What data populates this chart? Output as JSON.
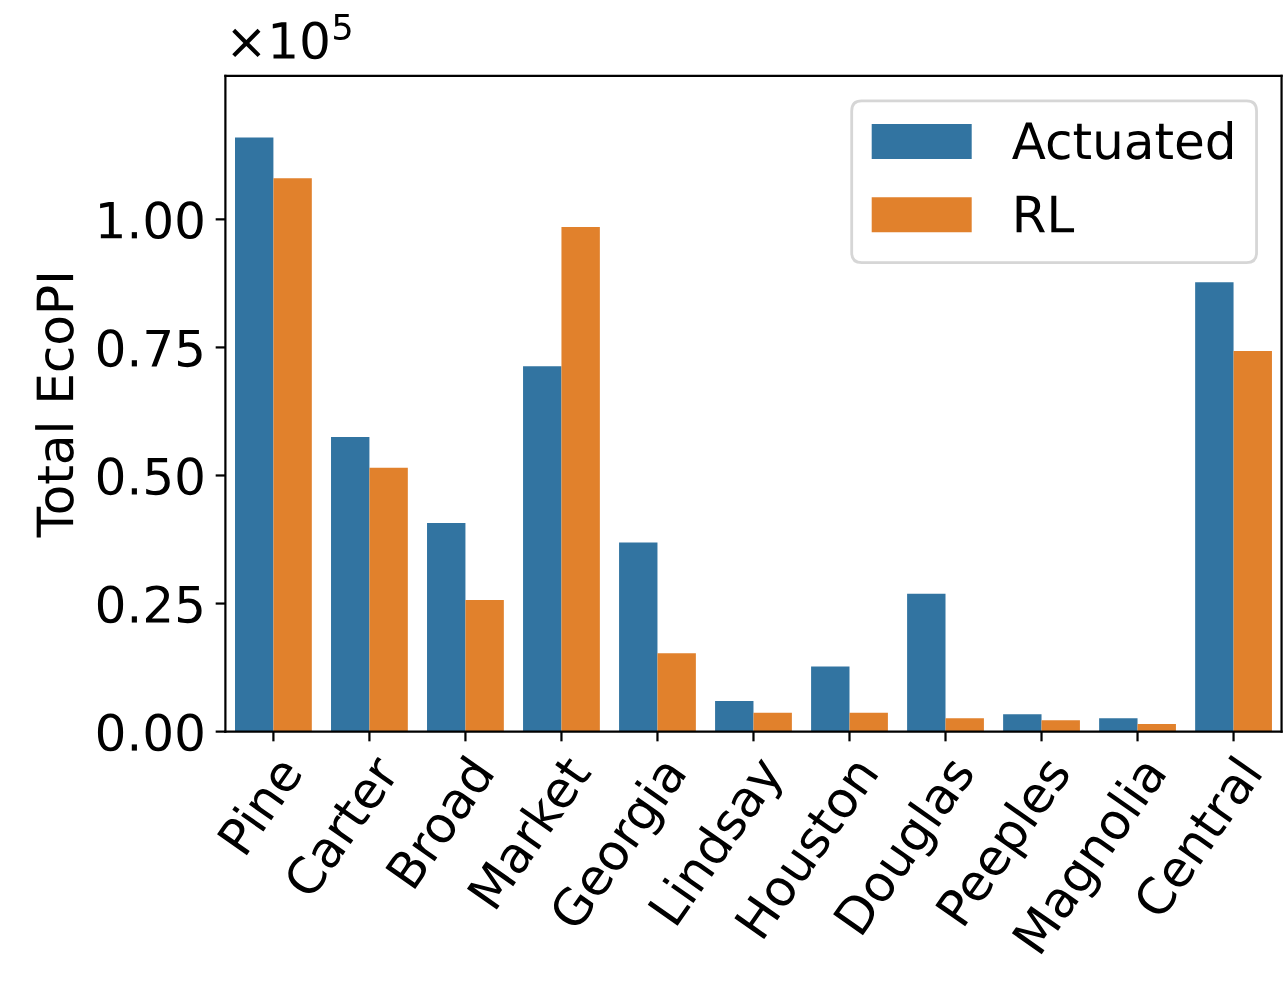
{
  "chart_data": {
    "type": "bar",
    "ylabel": "Total EcoPI",
    "categories": [
      "Pine",
      "Carter",
      "Broad",
      "Market",
      "Georgia",
      "Lindsay",
      "Houston",
      "Douglas",
      "Peeples",
      "Magnolia",
      "Central"
    ],
    "series": [
      {
        "name": "Actuated",
        "color": "#3274a1",
        "values": [
          1.16,
          0.575,
          0.407,
          0.713,
          0.369,
          0.06,
          0.127,
          0.269,
          0.034,
          0.026,
          0.877
        ]
      },
      {
        "name": "RL",
        "color": "#e1812c",
        "values": [
          1.08,
          0.515,
          0.257,
          0.985,
          0.153,
          0.037,
          0.037,
          0.026,
          0.022,
          0.015,
          0.743
        ]
      }
    ],
    "ylim": [
      0,
      1.28
    ],
    "yticks": [
      {
        "value": 0,
        "label": "0.00"
      },
      {
        "value": 0.25,
        "label": "0.25"
      },
      {
        "value": 0.5,
        "label": "0.50"
      },
      {
        "value": 0.75,
        "label": "0.75"
      },
      {
        "value": 1.0,
        "label": "1.00"
      }
    ],
    "annotations": [
      "×10$^{5}$"
    ],
    "legend": "top right",
    "grid": false
  }
}
